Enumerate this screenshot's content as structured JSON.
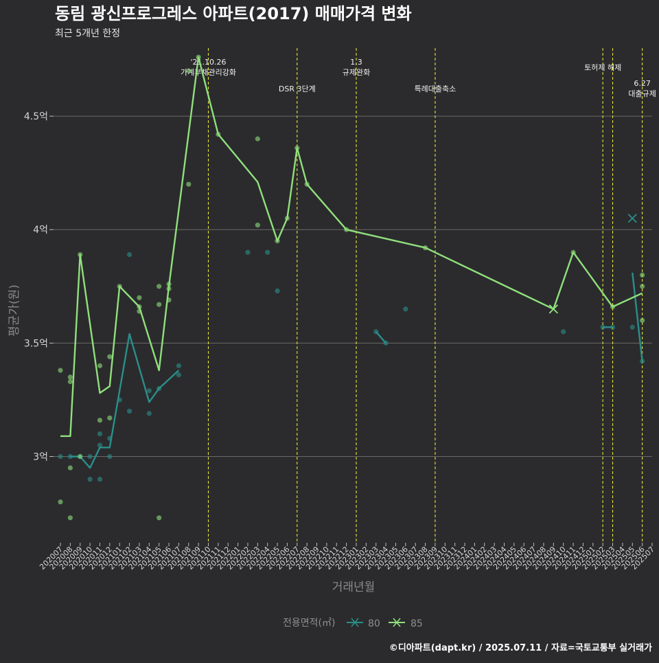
{
  "header": {
    "title": "동림 광신프로그레스 아파트(2017) 매매가격 변화",
    "subtitle": "최근 5개년 한정"
  },
  "caption": "©디아파트(dapt.kr) / 2025.07.11 / 자료=국토교통부 실거래가",
  "colors": {
    "background": "#2b2b2d",
    "grid": "#6a6a6a",
    "series_80": "#2a8f8a",
    "series_85": "#90e07c",
    "event_line": "#e8e33a"
  },
  "chart_data": {
    "type": "line",
    "title": "동림 광신프로그레스 아파트(2017) 매매가격 변화",
    "subtitle": "최근 5개년 한정",
    "xlabel": "거래년월",
    "ylabel": "평균가(원)",
    "x_categories": [
      "202007",
      "202008",
      "202009",
      "202010",
      "202011",
      "202012",
      "202101",
      "202102",
      "202103",
      "202104",
      "202105",
      "202106",
      "202107",
      "202108",
      "202109",
      "202110",
      "202111",
      "202112",
      "202201",
      "202202",
      "202203",
      "202204",
      "202205",
      "202206",
      "202207",
      "202208",
      "202209",
      "202210",
      "202211",
      "202212",
      "202301",
      "202302",
      "202303",
      "202304",
      "202305",
      "202306",
      "202307",
      "202308",
      "202309",
      "202310",
      "202311",
      "202312",
      "202401",
      "202402",
      "202403",
      "202404",
      "202405",
      "202406",
      "202407",
      "202408",
      "202409",
      "202410",
      "202411",
      "202412",
      "202501",
      "202502",
      "202503",
      "202504",
      "202505",
      "202506",
      "202507"
    ],
    "ylim": [
      2.62,
      4.8
    ],
    "y_ticks": [
      {
        "value": 3.0,
        "label": "3억"
      },
      {
        "value": 3.5,
        "label": "3.5억"
      },
      {
        "value": 4.0,
        "label": "4억"
      },
      {
        "value": 4.5,
        "label": "4.5억"
      }
    ],
    "grid": true,
    "legend": {
      "title": "전용면적(㎡)",
      "position": "bottom",
      "entries": [
        "80",
        "85"
      ]
    },
    "series": [
      {
        "name": "80",
        "color": "#2a8f8a",
        "line": [
          [
            "202008",
            3.0
          ],
          [
            "202009",
            3.0
          ],
          [
            "202010",
            2.95
          ],
          [
            "202011",
            3.04
          ],
          [
            "202012",
            3.04
          ],
          [
            "202102",
            3.54
          ],
          [
            "202104",
            3.24
          ],
          [
            "202105",
            3.3
          ],
          [
            "202107",
            3.38
          ]
        ],
        "line_segments": [
          [
            [
              "202303",
              3.55
            ],
            [
              "202304",
              3.5
            ]
          ],
          [
            [
              "202502",
              3.57
            ],
            [
              "202503",
              3.57
            ]
          ],
          [
            [
              "202505",
              3.81
            ],
            [
              "202506",
              3.42
            ]
          ]
        ],
        "points": [
          [
            "202007",
            3.0
          ],
          [
            "202008",
            3.0
          ],
          [
            "202009",
            3.0
          ],
          [
            "202010",
            2.9
          ],
          [
            "202010",
            3.0
          ],
          [
            "202011",
            2.9
          ],
          [
            "202011",
            3.05
          ],
          [
            "202011",
            3.1
          ],
          [
            "202012",
            3.0
          ],
          [
            "202012",
            3.08
          ],
          [
            "202101",
            3.25
          ],
          [
            "202102",
            3.2
          ],
          [
            "202102",
            3.89
          ],
          [
            "202104",
            3.19
          ],
          [
            "202104",
            3.29
          ],
          [
            "202105",
            3.3
          ],
          [
            "202107",
            3.36
          ],
          [
            "202107",
            3.4
          ],
          [
            "202202",
            3.9
          ],
          [
            "202204",
            3.9
          ],
          [
            "202205",
            3.73
          ],
          [
            "202303",
            3.55
          ],
          [
            "202304",
            3.5
          ],
          [
            "202306",
            3.65
          ],
          [
            "202410",
            3.55
          ],
          [
            "202502",
            3.57
          ],
          [
            "202503",
            3.57
          ],
          [
            "202505",
            3.57
          ],
          [
            "202506",
            3.42
          ]
        ],
        "cross_markers": [
          [
            "202505",
            4.05
          ]
        ]
      },
      {
        "name": "85",
        "color": "#90e07c",
        "line": [
          [
            "202007",
            3.09
          ],
          [
            "202008",
            3.09
          ],
          [
            "202009",
            3.89
          ],
          [
            "202011",
            3.28
          ],
          [
            "202012",
            3.31
          ],
          [
            "202101",
            3.75
          ],
          [
            "202103",
            3.66
          ],
          [
            "202105",
            3.38
          ],
          [
            "202106",
            3.75
          ],
          [
            "202109",
            4.76
          ],
          [
            "202111",
            4.42
          ],
          [
            "202203",
            4.21
          ],
          [
            "202205",
            3.95
          ],
          [
            "202206",
            4.05
          ],
          [
            "202207",
            4.36
          ],
          [
            "202208",
            4.2
          ],
          [
            "202212",
            4.0
          ],
          [
            "202308",
            3.92
          ],
          [
            "202409",
            3.65
          ],
          [
            "202411",
            3.9
          ],
          [
            "202503",
            3.66
          ],
          [
            "202506",
            3.72
          ]
        ],
        "points": [
          [
            "202007",
            2.8
          ],
          [
            "202007",
            3.38
          ],
          [
            "202008",
            2.73
          ],
          [
            "202008",
            2.95
          ],
          [
            "202008",
            3.33
          ],
          [
            "202008",
            3.35
          ],
          [
            "202009",
            3.0
          ],
          [
            "202009",
            3.89
          ],
          [
            "202011",
            3.16
          ],
          [
            "202011",
            3.4
          ],
          [
            "202012",
            3.17
          ],
          [
            "202012",
            3.44
          ],
          [
            "202101",
            3.75
          ],
          [
            "202103",
            3.64
          ],
          [
            "202103",
            3.66
          ],
          [
            "202103",
            3.7
          ],
          [
            "202105",
            2.73
          ],
          [
            "202105",
            3.67
          ],
          [
            "202105",
            3.75
          ],
          [
            "202106",
            3.69
          ],
          [
            "202106",
            3.74
          ],
          [
            "202106",
            3.76
          ],
          [
            "202108",
            4.2
          ],
          [
            "202108",
            4.7
          ],
          [
            "202109",
            4.76
          ],
          [
            "202111",
            4.42
          ],
          [
            "202203",
            4.02
          ],
          [
            "202203",
            4.4
          ],
          [
            "202205",
            3.95
          ],
          [
            "202206",
            4.05
          ],
          [
            "202207",
            4.36
          ],
          [
            "202208",
            4.2
          ],
          [
            "202212",
            4.0
          ],
          [
            "202308",
            3.92
          ],
          [
            "202411",
            3.9
          ],
          [
            "202503",
            3.66
          ],
          [
            "202506",
            3.6
          ],
          [
            "202506",
            3.75
          ],
          [
            "202506",
            3.8
          ]
        ],
        "cross_markers": [
          [
            "202409",
            3.65
          ]
        ]
      }
    ],
    "events": [
      {
        "x": "202110",
        "lines": [
          "'21.10.26",
          "가계부채관리강화"
        ],
        "level": 0
      },
      {
        "x": "202207",
        "lines": [
          "DSR 3단계"
        ],
        "level": 1
      },
      {
        "x": "202301",
        "lines": [
          "1.3",
          "규제완화"
        ],
        "level": 0
      },
      {
        "x": "202309",
        "lines": [
          "특례대출축소"
        ],
        "level": 1
      },
      {
        "x": "202502",
        "lines": [
          "토허제 해제"
        ],
        "level": 0
      },
      {
        "x": "202503",
        "lines": [],
        "level": 0
      },
      {
        "x": "202506",
        "lines": [
          "6.27",
          "대출규제"
        ],
        "level": 2
      }
    ]
  }
}
